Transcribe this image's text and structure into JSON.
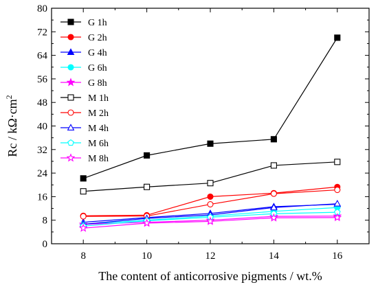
{
  "chart_data": {
    "type": "line",
    "xlabel": "The content of anticorrosive pigments / wt.%",
    "ylabel": "Rc / kΩ·cm",
    "ylabel_superscript": "2",
    "xlim": [
      7,
      17
    ],
    "ylim": [
      0,
      80
    ],
    "xticks": [
      8,
      10,
      12,
      14,
      16
    ],
    "yticks": [
      0,
      8,
      16,
      24,
      32,
      40,
      48,
      56,
      64,
      72,
      80
    ],
    "x": [
      8,
      10,
      12,
      14,
      16
    ],
    "legend_position": "top-left",
    "series": [
      {
        "name": "G  1h",
        "color": "#000000",
        "marker": "square",
        "filled": true,
        "values": [
          22.2,
          30.0,
          34.0,
          35.5,
          70.0
        ]
      },
      {
        "name": "G  2h",
        "color": "#ff0000",
        "marker": "circle",
        "filled": true,
        "values": [
          9.5,
          9.7,
          16.0,
          17.2,
          19.3
        ]
      },
      {
        "name": "G  4h",
        "color": "#0000ff",
        "marker": "triangle",
        "filled": true,
        "values": [
          7.3,
          8.9,
          10.3,
          12.6,
          13.4
        ]
      },
      {
        "name": "G  6h",
        "color": "#00ffff",
        "marker": "circle",
        "filled": true,
        "values": [
          6.6,
          8.0,
          9.4,
          11.0,
          12.3
        ]
      },
      {
        "name": "G  8h",
        "color": "#ff00ff",
        "marker": "star",
        "filled": true,
        "values": [
          6.6,
          7.3,
          8.0,
          9.3,
          9.4
        ]
      },
      {
        "name": "M 1h",
        "color": "#000000",
        "marker": "square",
        "filled": false,
        "values": [
          17.8,
          19.3,
          20.6,
          26.6,
          27.8
        ]
      },
      {
        "name": "M 2h",
        "color": "#ff0000",
        "marker": "circle",
        "filled": false,
        "values": [
          9.3,
          9.4,
          13.4,
          17.0,
          18.3
        ]
      },
      {
        "name": "M 4h",
        "color": "#0000ff",
        "marker": "triangle",
        "filled": false,
        "values": [
          6.6,
          8.6,
          9.8,
          12.3,
          13.6
        ]
      },
      {
        "name": "M 6h",
        "color": "#00ffff",
        "marker": "pentagon",
        "filled": false,
        "values": [
          6.0,
          7.8,
          9.0,
          10.2,
          10.7
        ]
      },
      {
        "name": "M 8h",
        "color": "#ff00ff",
        "marker": "star",
        "filled": false,
        "values": [
          5.3,
          7.0,
          7.6,
          8.8,
          8.9
        ]
      }
    ]
  }
}
